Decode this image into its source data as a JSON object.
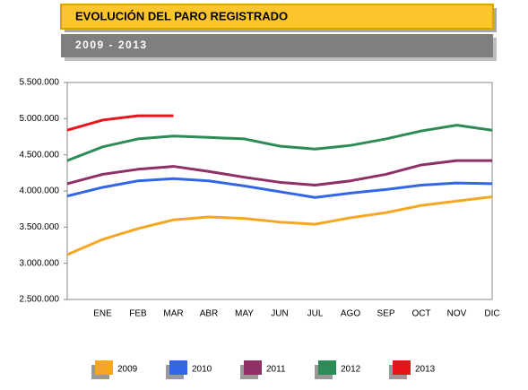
{
  "chart_data": {
    "type": "line",
    "title": "EVOLUCIÓN DEL PARO REGISTRADO",
    "subtitle": "2009 - 2013",
    "categories": [
      null,
      "ENE",
      "FEB",
      "MAR",
      "ABR",
      "MAY",
      "JUN",
      "JUL",
      "AGO",
      "SEP",
      "OCT",
      "NOV",
      "DIC"
    ],
    "series": [
      {
        "name": "2009",
        "color": "#f5a623",
        "values": [
          3120000,
          3330000,
          3480000,
          3600000,
          3640000,
          3620000,
          3570000,
          3540000,
          3630000,
          3700000,
          3800000,
          3860000,
          3920000
        ]
      },
      {
        "name": "2010",
        "color": "#3366e6",
        "values": [
          3930000,
          4050000,
          4140000,
          4170000,
          4140000,
          4070000,
          3990000,
          3910000,
          3970000,
          4020000,
          4080000,
          4110000,
          4100000
        ]
      },
      {
        "name": "2011",
        "color": "#8e2f65",
        "values": [
          4100000,
          4230000,
          4300000,
          4340000,
          4270000,
          4190000,
          4120000,
          4080000,
          4140000,
          4230000,
          4360000,
          4420000,
          4420000
        ]
      },
      {
        "name": "2012",
        "color": "#2e8b57",
        "values": [
          4420000,
          4610000,
          4720000,
          4760000,
          4740000,
          4720000,
          4620000,
          4580000,
          4630000,
          4720000,
          4830000,
          4910000,
          4840000
        ]
      },
      {
        "name": "2013",
        "color": "#e8141b",
        "values": [
          4840000,
          4980000,
          5040000,
          5040000,
          null,
          null,
          null,
          null,
          null,
          null,
          null,
          null,
          null
        ]
      }
    ],
    "ylim": [
      2500000,
      5500000
    ],
    "yticks": [
      {
        "value": 2500000,
        "label": "2.500.000"
      },
      {
        "value": 3000000,
        "label": "3.000.000"
      },
      {
        "value": 3500000,
        "label": "3.500.000"
      },
      {
        "value": 4000000,
        "label": "4.000.000"
      },
      {
        "value": 4500000,
        "label": "4.500.000"
      },
      {
        "value": 5000000,
        "label": "5.000.000"
      },
      {
        "value": 5500000,
        "label": "5.500.000"
      }
    ],
    "legend": "bottom"
  }
}
